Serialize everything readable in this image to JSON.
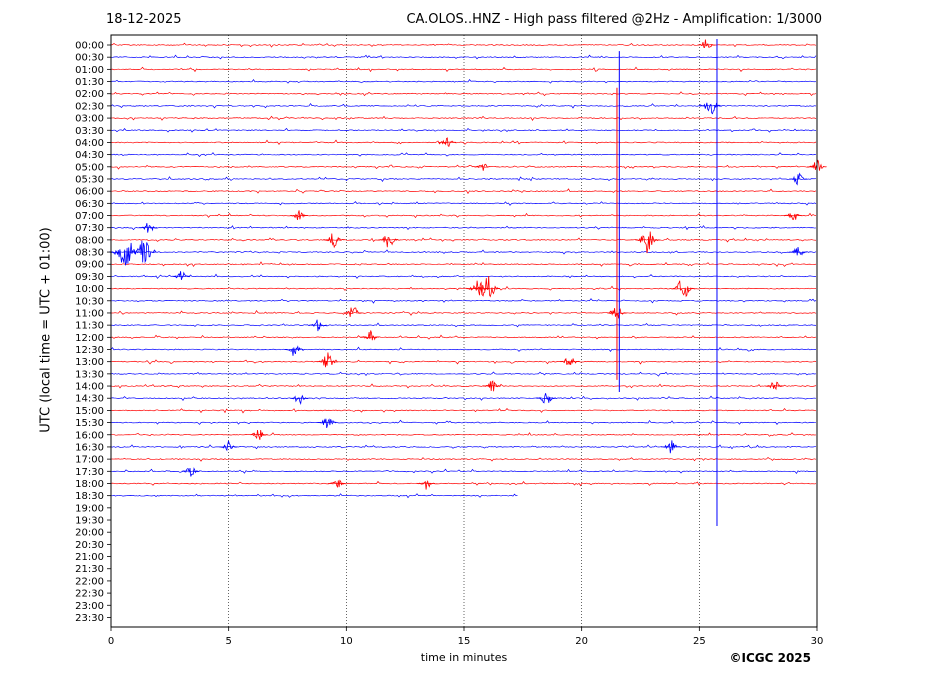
{
  "header": {
    "date": "18-12-2025",
    "title": "CA.OLOS..HNZ - High pass filtered @2Hz - Amplification: 1/3000"
  },
  "footer": {
    "copyright": "©ICGC 2025"
  },
  "chart_data": {
    "type": "line",
    "subtype": "helicorder",
    "xlabel": "time in minutes",
    "ylabel": "UTC (local time = UTC + 01:00)",
    "xlim": [
      0,
      30
    ],
    "x_ticks": [
      "0",
      "5",
      "10",
      "15",
      "20",
      "25",
      "30"
    ],
    "x_tick_values": [
      0,
      5,
      10,
      15,
      20,
      25,
      30
    ],
    "grid": "vertical dotted at each x tick",
    "row_colors": [
      "#ff0000",
      "#0000ff"
    ],
    "rows": [
      {
        "label": "00:00",
        "end": 30
      },
      {
        "label": "00:30",
        "end": 30
      },
      {
        "label": "01:00",
        "end": 30
      },
      {
        "label": "01:30",
        "end": 30
      },
      {
        "label": "02:00",
        "end": 30
      },
      {
        "label": "02:30",
        "end": 30
      },
      {
        "label": "03:00",
        "end": 30
      },
      {
        "label": "03:30",
        "end": 30
      },
      {
        "label": "04:00",
        "end": 30
      },
      {
        "label": "04:30",
        "end": 30
      },
      {
        "label": "05:00",
        "end": 30
      },
      {
        "label": "05:30",
        "end": 30
      },
      {
        "label": "06:00",
        "end": 30
      },
      {
        "label": "06:30",
        "end": 30
      },
      {
        "label": "07:00",
        "end": 30
      },
      {
        "label": "07:30",
        "end": 30
      },
      {
        "label": "08:00",
        "end": 30
      },
      {
        "label": "08:30",
        "end": 30
      },
      {
        "label": "09:00",
        "end": 30
      },
      {
        "label": "09:30",
        "end": 30
      },
      {
        "label": "10:00",
        "end": 30
      },
      {
        "label": "10:30",
        "end": 30
      },
      {
        "label": "11:00",
        "end": 30
      },
      {
        "label": "11:30",
        "end": 30
      },
      {
        "label": "12:00",
        "end": 30
      },
      {
        "label": "12:30",
        "end": 30
      },
      {
        "label": "13:00",
        "end": 30
      },
      {
        "label": "13:30",
        "end": 30
      },
      {
        "label": "14:00",
        "end": 30
      },
      {
        "label": "14:30",
        "end": 30
      },
      {
        "label": "15:00",
        "end": 30
      },
      {
        "label": "15:30",
        "end": 30
      },
      {
        "label": "16:00",
        "end": 30
      },
      {
        "label": "16:30",
        "end": 30
      },
      {
        "label": "17:00",
        "end": 30
      },
      {
        "label": "17:30",
        "end": 30
      },
      {
        "label": "18:00",
        "end": 30
      },
      {
        "label": "18:30",
        "end": 17.3
      },
      {
        "label": "19:00",
        "end": 0
      },
      {
        "label": "19:30",
        "end": 0
      },
      {
        "label": "20:00",
        "end": 0
      },
      {
        "label": "20:30",
        "end": 0
      },
      {
        "label": "21:00",
        "end": 0
      },
      {
        "label": "21:30",
        "end": 0
      },
      {
        "label": "22:00",
        "end": 0
      },
      {
        "label": "22:30",
        "end": 0
      },
      {
        "label": "23:00",
        "end": 0
      },
      {
        "label": "23:30",
        "end": 0
      }
    ],
    "events": [
      {
        "row": "00:00",
        "x": 25.3,
        "amp": 0.5
      },
      {
        "row": "02:30",
        "x": 25.5,
        "amp": 0.9
      },
      {
        "row": "04:00",
        "x": 14.3,
        "amp": 0.5
      },
      {
        "row": "05:00",
        "x": 15.8,
        "amp": 0.4
      },
      {
        "row": "05:00",
        "x": 30.0,
        "amp": 0.6
      },
      {
        "row": "05:30",
        "x": 29.2,
        "amp": 0.5
      },
      {
        "row": "07:00",
        "x": 8.0,
        "amp": 0.5
      },
      {
        "row": "07:00",
        "x": 29.0,
        "amp": 0.5
      },
      {
        "row": "07:30",
        "x": 1.6,
        "amp": 0.5
      },
      {
        "row": "08:00",
        "x": 9.5,
        "amp": 0.8
      },
      {
        "row": "08:00",
        "x": 11.8,
        "amp": 0.7
      },
      {
        "row": "08:00",
        "x": 22.8,
        "amp": 1.1
      },
      {
        "row": "08:30",
        "x": 0.6,
        "amp": 1.6
      },
      {
        "row": "08:30",
        "x": 1.4,
        "amp": 1.2
      },
      {
        "row": "08:30",
        "x": 29.2,
        "amp": 0.5
      },
      {
        "row": "09:30",
        "x": 3.0,
        "amp": 0.5
      },
      {
        "row": "10:00",
        "x": 15.6,
        "amp": 0.9
      },
      {
        "row": "10:00",
        "x": 16.0,
        "amp": 1.2
      },
      {
        "row": "10:00",
        "x": 24.3,
        "amp": 1.0
      },
      {
        "row": "11:00",
        "x": 10.3,
        "amp": 0.6
      },
      {
        "row": "11:00",
        "x": 21.5,
        "amp": 0.6
      },
      {
        "row": "11:30",
        "x": 8.8,
        "amp": 0.5
      },
      {
        "row": "12:00",
        "x": 11.0,
        "amp": 0.6
      },
      {
        "row": "12:30",
        "x": 7.8,
        "amp": 0.6
      },
      {
        "row": "13:00",
        "x": 9.2,
        "amp": 0.8
      },
      {
        "row": "13:00",
        "x": 19.5,
        "amp": 0.6
      },
      {
        "row": "14:00",
        "x": 16.2,
        "amp": 0.5
      },
      {
        "row": "14:00",
        "x": 28.2,
        "amp": 0.5
      },
      {
        "row": "14:30",
        "x": 8.0,
        "amp": 0.5
      },
      {
        "row": "14:30",
        "x": 18.5,
        "amp": 0.6
      },
      {
        "row": "15:30",
        "x": 9.2,
        "amp": 0.6
      },
      {
        "row": "16:00",
        "x": 6.3,
        "amp": 0.5
      },
      {
        "row": "16:30",
        "x": 5.0,
        "amp": 0.5
      },
      {
        "row": "16:30",
        "x": 23.8,
        "amp": 0.6
      },
      {
        "row": "17:30",
        "x": 3.4,
        "amp": 0.5
      },
      {
        "row": "18:00",
        "x": 9.6,
        "amp": 0.5
      },
      {
        "row": "18:00",
        "x": 13.4,
        "amp": 0.5
      }
    ],
    "spikes": [
      {
        "x": 21.6,
        "from": "00:30",
        "to": "14:00",
        "color": "#0000ff"
      },
      {
        "x": 21.5,
        "from": "02:00",
        "to": "13:30",
        "color": "#ff0000"
      },
      {
        "x": 25.75,
        "from": "00:00",
        "to": "19:30",
        "color": "#0000ff"
      }
    ]
  }
}
